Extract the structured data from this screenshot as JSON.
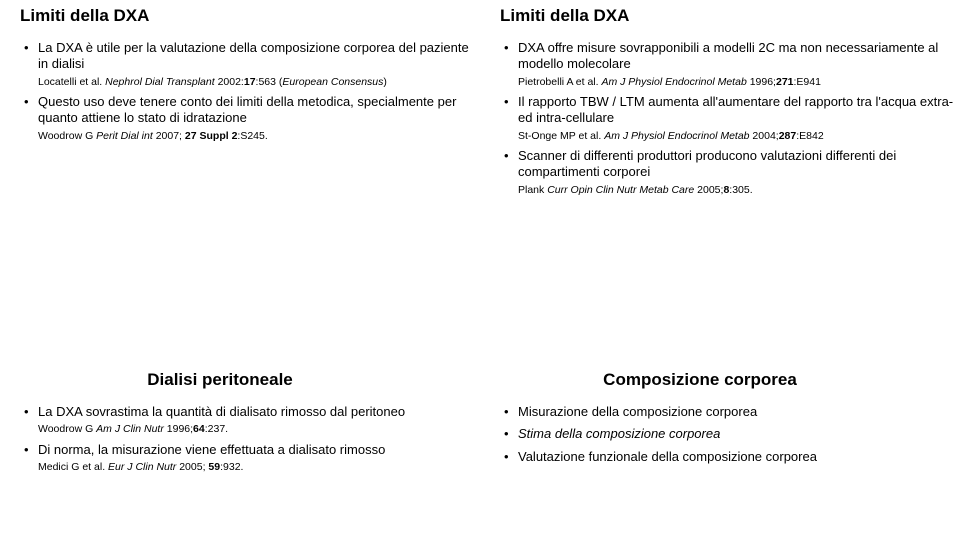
{
  "topLeft": {
    "heading": "Limiti della DXA",
    "items": [
      {
        "text": "La DXA è utile per la valutazione della composizione corporea del paziente in dialisi",
        "ref_plain": "Locatelli et al. ",
        "ref_ital": "Nephrol Dial Transplant ",
        "ref_tail_plain": "2002:",
        "ref_tail_bold": "17",
        "ref_tail_after": ":563 (",
        "ref_tail_ital": "European Consensus",
        "ref_tail_close": ")"
      },
      {
        "text": "Questo uso deve tenere conto dei limiti della metodica, specialmente per quanto attiene lo stato di idratazione",
        "ref_plain": "Woodrow G ",
        "ref_ital": "Perit Dial int ",
        "ref_tail_plain": "2007; ",
        "ref_tail_bold": "27 Suppl 2",
        "ref_tail_after": ":S245."
      }
    ]
  },
  "topRight": {
    "heading": "Limiti della DXA",
    "items": [
      {
        "text": "DXA offre misure sovrapponibili a modelli 2C ma non necessariamente al modello molecolare",
        "ref_plain": "Pietrobelli A et al. ",
        "ref_ital": "Am J Physiol Endocrinol Metab ",
        "ref_tail_plain": "1996;",
        "ref_tail_bold": "271",
        "ref_tail_after": ":E941"
      },
      {
        "text": "Il rapporto TBW / LTM aumenta all'aumentare del rapporto tra l'acqua extra- ed intra-cellulare",
        "ref_plain": "St-Onge MP et al. ",
        "ref_ital": "Am J Physiol Endocrinol Metab ",
        "ref_tail_plain": "2004;",
        "ref_tail_bold": "287",
        "ref_tail_after": ":E842"
      },
      {
        "text": "Scanner di differenti produttori producono valutazioni differenti dei compartimenti corporei",
        "ref_plain": "Plank ",
        "ref_ital": "Curr Opin Clin Nutr Metab Care ",
        "ref_tail_plain": "2005;",
        "ref_tail_bold": "8",
        "ref_tail_after": ":305."
      }
    ]
  },
  "bottomLeft": {
    "heading": "Dialisi peritoneale",
    "items": [
      {
        "text": "La DXA sovrastima la quantità di dialisato rimosso dal peritoneo",
        "ref_plain": "Woodrow G ",
        "ref_ital": "Am J Clin Nutr ",
        "ref_tail_plain": "1996;",
        "ref_tail_bold": "64",
        "ref_tail_after": ":237."
      },
      {
        "text": "Di norma, la misurazione viene effettuata a dialisato rimosso",
        "ref_plain": "Medici G et al. ",
        "ref_ital": "Eur J Clin Nutr ",
        "ref_tail_plain": "2005; ",
        "ref_tail_bold": "59",
        "ref_tail_after": ":932."
      }
    ]
  },
  "bottomRight": {
    "heading": "Composizione corporea",
    "items": [
      {
        "text": "Misurazione della composizione corporea"
      },
      {
        "text_ital": "Stima della composizione corporea"
      },
      {
        "text": "Valutazione funzionale della composizione corporea"
      }
    ]
  }
}
